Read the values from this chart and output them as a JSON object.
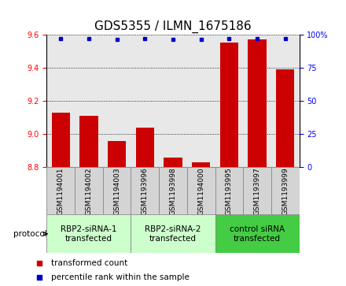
{
  "title": "GDS5355 / ILMN_1675186",
  "samples": [
    "GSM1194001",
    "GSM1194002",
    "GSM1194003",
    "GSM1193996",
    "GSM1193998",
    "GSM1194000",
    "GSM1193995",
    "GSM1193997",
    "GSM1193999"
  ],
  "bar_values": [
    9.13,
    9.11,
    8.96,
    9.04,
    8.86,
    8.83,
    9.55,
    9.57,
    9.39
  ],
  "dot_values": [
    97,
    97,
    96,
    97,
    96,
    96,
    97,
    97,
    97
  ],
  "ylim_left": [
    8.8,
    9.6
  ],
  "ylim_right": [
    0,
    100
  ],
  "yticks_left": [
    8.8,
    9.0,
    9.2,
    9.4,
    9.6
  ],
  "yticks_right": [
    0,
    25,
    50,
    75,
    100
  ],
  "bar_color": "#cc0000",
  "dot_color": "#0000cc",
  "bg_plot": "#e8e8e8",
  "bg_sample": "#d4d4d4",
  "group_labels": [
    "RBP2-siRNA-1\ntransfected",
    "RBP2-siRNA-2\ntransfected",
    "control siRNA\ntransfected"
  ],
  "group_colors": [
    "#ccffcc",
    "#ccffcc",
    "#44cc44"
  ],
  "group_ranges": [
    [
      0,
      3
    ],
    [
      3,
      6
    ],
    [
      6,
      9
    ]
  ],
  "protocol_label": "protocol",
  "legend_items": [
    {
      "label": "transformed count",
      "color": "#cc0000",
      "marker": "s"
    },
    {
      "label": "percentile rank within the sample",
      "color": "#0000cc",
      "marker": "s"
    }
  ],
  "bar_width": 0.65,
  "title_fontsize": 11,
  "tick_fontsize": 7,
  "sample_fontsize": 6.5,
  "label_fontsize": 7.5,
  "group_label_fontsize": 7.5
}
